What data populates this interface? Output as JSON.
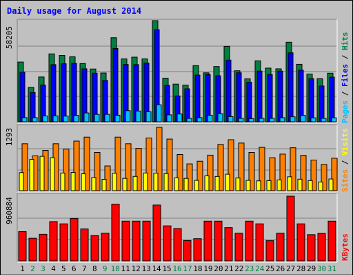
{
  "window": {
    "title": "Daily usage for August 2014"
  },
  "colors": {
    "hits": "#008040",
    "files": "#0000ff",
    "pages": "#00c0ff",
    "visits": "#ffff00",
    "sites": "#ff8000",
    "kbytes": "#ff0000",
    "weekend": "#008040",
    "weekday": "#000000"
  },
  "chart_data": [
    {
      "type": "bar",
      "title": "Daily usage for August 2014",
      "categories": [
        "1",
        "2",
        "3",
        "4",
        "5",
        "6",
        "7",
        "8",
        "9",
        "10",
        "11",
        "12",
        "13",
        "14",
        "15",
        "16",
        "17",
        "18",
        "19",
        "20",
        "21",
        "22",
        "23",
        "24",
        "25",
        "26",
        "27",
        "28",
        "29",
        "30",
        "31"
      ],
      "weekend_days": [
        "2",
        "3",
        "9",
        "10",
        "16",
        "17",
        "23",
        "24",
        "30",
        "31"
      ],
      "ylabel_max": "58205",
      "ylim": [
        0,
        58205
      ],
      "legend": [
        "Pages",
        "Files",
        "Hits"
      ],
      "series": [
        {
          "name": "Hits",
          "values": [
            34400,
            19800,
            25800,
            39100,
            38200,
            37400,
            33500,
            30400,
            28100,
            48400,
            36200,
            37200,
            36200,
            58205,
            25100,
            21700,
            21100,
            32300,
            28200,
            31800,
            43400,
            29400,
            24700,
            35100,
            30900,
            30500,
            45800,
            33100,
            27500,
            24800,
            28000
          ]
        },
        {
          "name": "Files",
          "values": [
            28500,
            16900,
            21200,
            32900,
            33400,
            33600,
            30500,
            28000,
            23800,
            42200,
            33000,
            32900,
            33800,
            53000,
            20900,
            14900,
            19000,
            26900,
            27200,
            26500,
            35500,
            28200,
            22800,
            29200,
            27200,
            29200,
            39700,
            29700,
            24800,
            20600,
            25700
          ]
        },
        {
          "name": "Pages",
          "values": [
            2400,
            2400,
            3400,
            3400,
            3300,
            3700,
            5100,
            4300,
            4300,
            3800,
            6400,
            6200,
            5800,
            9800,
            4000,
            4500,
            2000,
            2400,
            3800,
            4700,
            3000,
            2000,
            1800,
            2000,
            2000,
            2400,
            2900,
            3700,
            2300,
            2000,
            2300
          ]
        }
      ]
    },
    {
      "type": "bar",
      "categories": [
        "1",
        "2",
        "3",
        "4",
        "5",
        "6",
        "7",
        "8",
        "9",
        "10",
        "11",
        "12",
        "13",
        "14",
        "15",
        "16",
        "17",
        "18",
        "19",
        "20",
        "21",
        "22",
        "23",
        "24",
        "25",
        "26",
        "27",
        "28",
        "29",
        "30",
        "31"
      ],
      "ylabel_max": "1293",
      "ylim": [
        0,
        1293
      ],
      "legend": [
        "Sites",
        "Visits"
      ],
      "series": [
        {
          "name": "Sites",
          "values": [
            958,
            711,
            822,
            958,
            849,
            1012,
            1093,
            780,
            505,
            1093,
            958,
            863,
            1076,
            1293,
            1053,
            738,
            547,
            601,
            725,
            944,
            1040,
            972,
            780,
            884,
            673,
            746,
            876,
            721,
            624,
            535,
            662
          ]
        },
        {
          "name": "Visits",
          "values": [
            368,
            637,
            701,
            673,
            360,
            373,
            344,
            266,
            232,
            355,
            250,
            291,
            361,
            358,
            348,
            260,
            250,
            210,
            302,
            290,
            336,
            258,
            210,
            200,
            205,
            219,
            283,
            234,
            207,
            177,
            238
          ]
        }
      ]
    },
    {
      "type": "bar",
      "categories": [
        "1",
        "2",
        "3",
        "4",
        "5",
        "6",
        "7",
        "8",
        "9",
        "10",
        "11",
        "12",
        "13",
        "14",
        "15",
        "16",
        "17",
        "18",
        "19",
        "20",
        "21",
        "22",
        "23",
        "24",
        "25",
        "26",
        "27",
        "28",
        "29",
        "30",
        "31"
      ],
      "ylabel_max": "960884",
      "ylim": [
        0,
        960884
      ],
      "legend": [
        "KBytes"
      ],
      "series": [
        {
          "name": "KBytes",
          "values": [
            434000,
            336000,
            395000,
            583000,
            550000,
            630000,
            474000,
            375000,
            410000,
            842000,
            590000,
            590000,
            590000,
            829000,
            520000,
            480000,
            301000,
            330000,
            590000,
            590000,
            494000,
            410000,
            590000,
            550000,
            300000,
            410000,
            960884,
            550000,
            390000,
            407000,
            590000
          ]
        }
      ]
    }
  ]
}
